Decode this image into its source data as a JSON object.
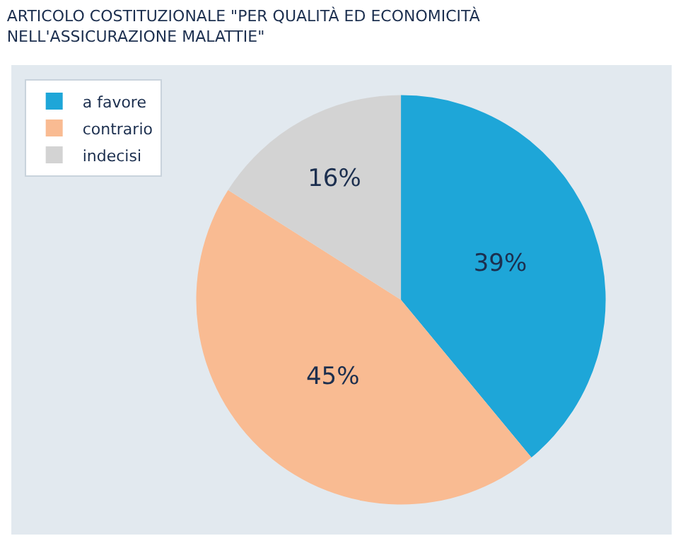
{
  "chart_data": {
    "type": "pie",
    "title": "ARTICOLO COSTITUZIONALE \"PER QUALITÀ ED ECONOMICITÀ NELL'ASSICURAZIONE MALATTIE\"",
    "categories": [
      "a favore",
      "contrario",
      "indecisi"
    ],
    "values": [
      39,
      45,
      16
    ],
    "colors": [
      "#1ea6d8",
      "#f9bb92",
      "#d3d3d3"
    ],
    "value_labels": [
      "39%",
      "45%",
      "16%"
    ],
    "legend": "top left"
  }
}
